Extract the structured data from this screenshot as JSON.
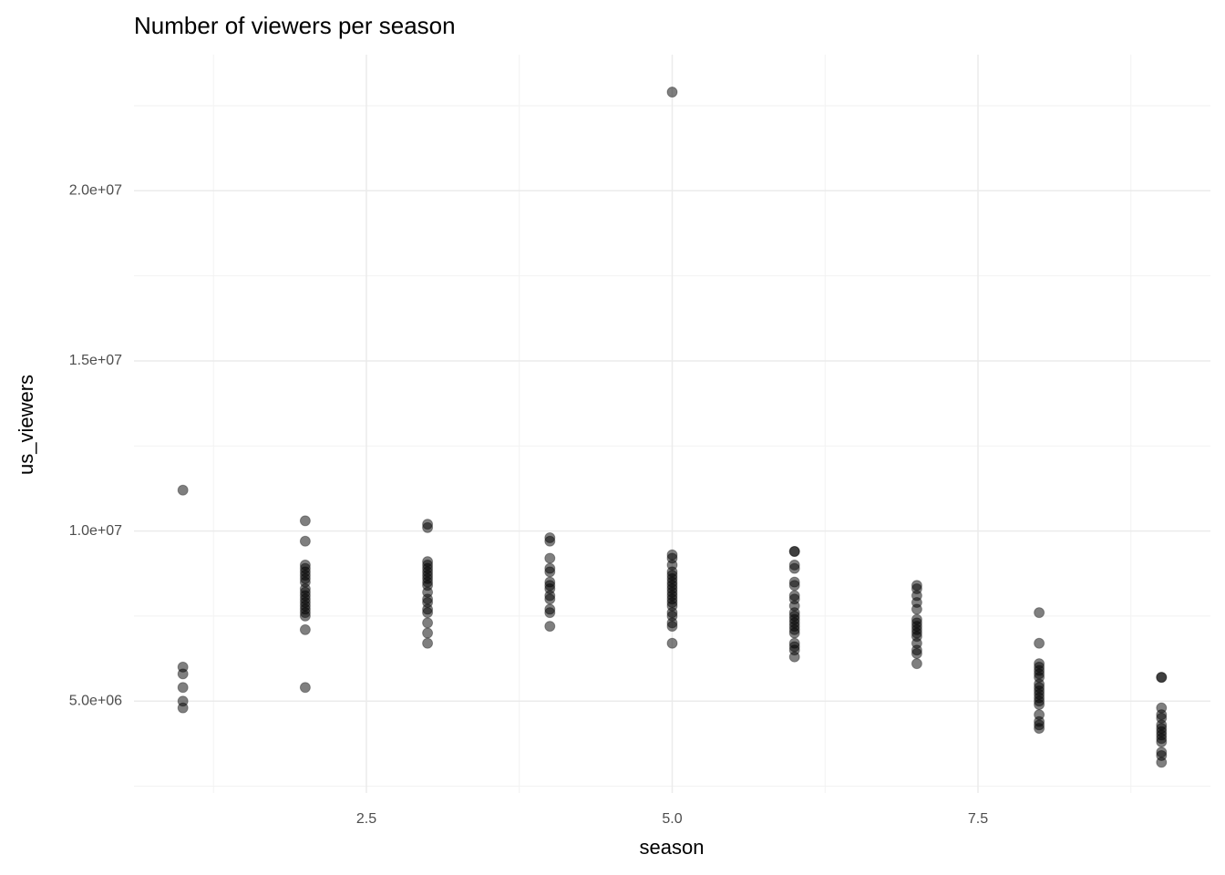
{
  "chart_data": {
    "type": "scatter",
    "title": "Number of viewers per season",
    "x_label": "season",
    "y_label": "us_viewers",
    "series": [
      {
        "color": "#000000",
        "x": [
          1,
          1,
          1,
          1,
          1,
          1,
          2,
          2,
          2,
          2,
          2,
          2,
          2,
          2,
          2,
          2,
          2,
          2,
          2,
          2,
          2,
          2,
          2,
          2,
          2,
          3,
          3,
          3,
          3,
          3,
          3,
          3,
          3,
          3,
          3,
          3,
          3,
          3,
          3,
          3,
          3,
          3,
          3,
          4,
          4,
          4,
          4,
          4,
          4,
          4,
          4,
          4,
          4,
          4,
          4,
          4,
          5,
          5,
          5,
          5,
          5,
          5,
          5,
          5,
          5,
          5,
          5,
          5,
          5,
          5,
          5,
          5,
          5,
          5,
          5,
          5,
          6,
          6,
          6,
          6,
          6,
          6,
          6,
          6,
          6,
          6,
          6,
          6,
          6,
          6,
          6,
          6,
          6,
          6,
          6,
          6,
          7,
          7,
          7,
          7,
          7,
          7,
          7,
          7,
          7,
          7,
          7,
          7,
          7,
          7,
          7,
          8,
          8,
          8,
          8,
          8,
          8,
          8,
          8,
          8,
          8,
          8,
          8,
          8,
          8,
          8,
          8,
          8,
          8,
          9,
          9,
          9,
          9,
          9,
          9,
          9,
          9,
          9,
          9,
          9,
          9,
          9,
          9
        ],
        "values": [
          11200000,
          6000000,
          5800000,
          5400000,
          5000000,
          4800000,
          10300000,
          9700000,
          9000000,
          8900000,
          8800000,
          8700000,
          8600000,
          8500000,
          8300000,
          8200000,
          8100000,
          8000000,
          7900000,
          7800000,
          7700000,
          7600000,
          7500000,
          7100000,
          5400000,
          10200000,
          10100000,
          9100000,
          9000000,
          8900000,
          8800000,
          8700000,
          8600000,
          8500000,
          8400000,
          8200000,
          8000000,
          7900000,
          7700000,
          7600000,
          7300000,
          7000000,
          6700000,
          9800000,
          9700000,
          9200000,
          8900000,
          8800000,
          8500000,
          8400000,
          8300000,
          8100000,
          8000000,
          7700000,
          7600000,
          7200000,
          22900000,
          9300000,
          9200000,
          9000000,
          8800000,
          8700000,
          8600000,
          8500000,
          8400000,
          8300000,
          8200000,
          8100000,
          8000000,
          7900000,
          7800000,
          7600000,
          7500000,
          7300000,
          7200000,
          6700000,
          9400000,
          9400000,
          9000000,
          8900000,
          8500000,
          8400000,
          8100000,
          8000000,
          7800000,
          7600000,
          7500000,
          7400000,
          7300000,
          7200000,
          7100000,
          7000000,
          6700000,
          6600000,
          6500000,
          6300000,
          8400000,
          8300000,
          8100000,
          7900000,
          7700000,
          7400000,
          7300000,
          7200000,
          7100000,
          7000000,
          6900000,
          6700000,
          6500000,
          6400000,
          6100000,
          7600000,
          6700000,
          6100000,
          6000000,
          5900000,
          5800000,
          5700000,
          5500000,
          5400000,
          5300000,
          5200000,
          5100000,
          5000000,
          4900000,
          4600000,
          4400000,
          4300000,
          4200000,
          5700000,
          5700000,
          4800000,
          4600000,
          4500000,
          4300000,
          4200000,
          4100000,
          4000000,
          3900000,
          3800000,
          3500000,
          3400000,
          3200000
        ]
      }
    ],
    "xlim": [
      0.6,
      9.4
    ],
    "ylim": [
      2300000,
      24000000
    ],
    "xticks": [
      2.5,
      {
        "value": 5,
        "label": "5.0"
      },
      7.5
    ],
    "yticks": [
      {
        "value": 5000000,
        "label": "5.0e+06"
      },
      {
        "value": 10000000,
        "label": "1.0e+07"
      },
      {
        "value": 15000000,
        "label": "1.5e+07"
      },
      {
        "value": 20000000,
        "label": "2.0e+07"
      }
    ],
    "minor_xticks": [
      1.25,
      3.75,
      6.25,
      8.75
    ],
    "minor_yticks": [
      2500000,
      7500000,
      12500000,
      17500000,
      22500000
    ],
    "grid": true,
    "opacity": 0.5
  }
}
